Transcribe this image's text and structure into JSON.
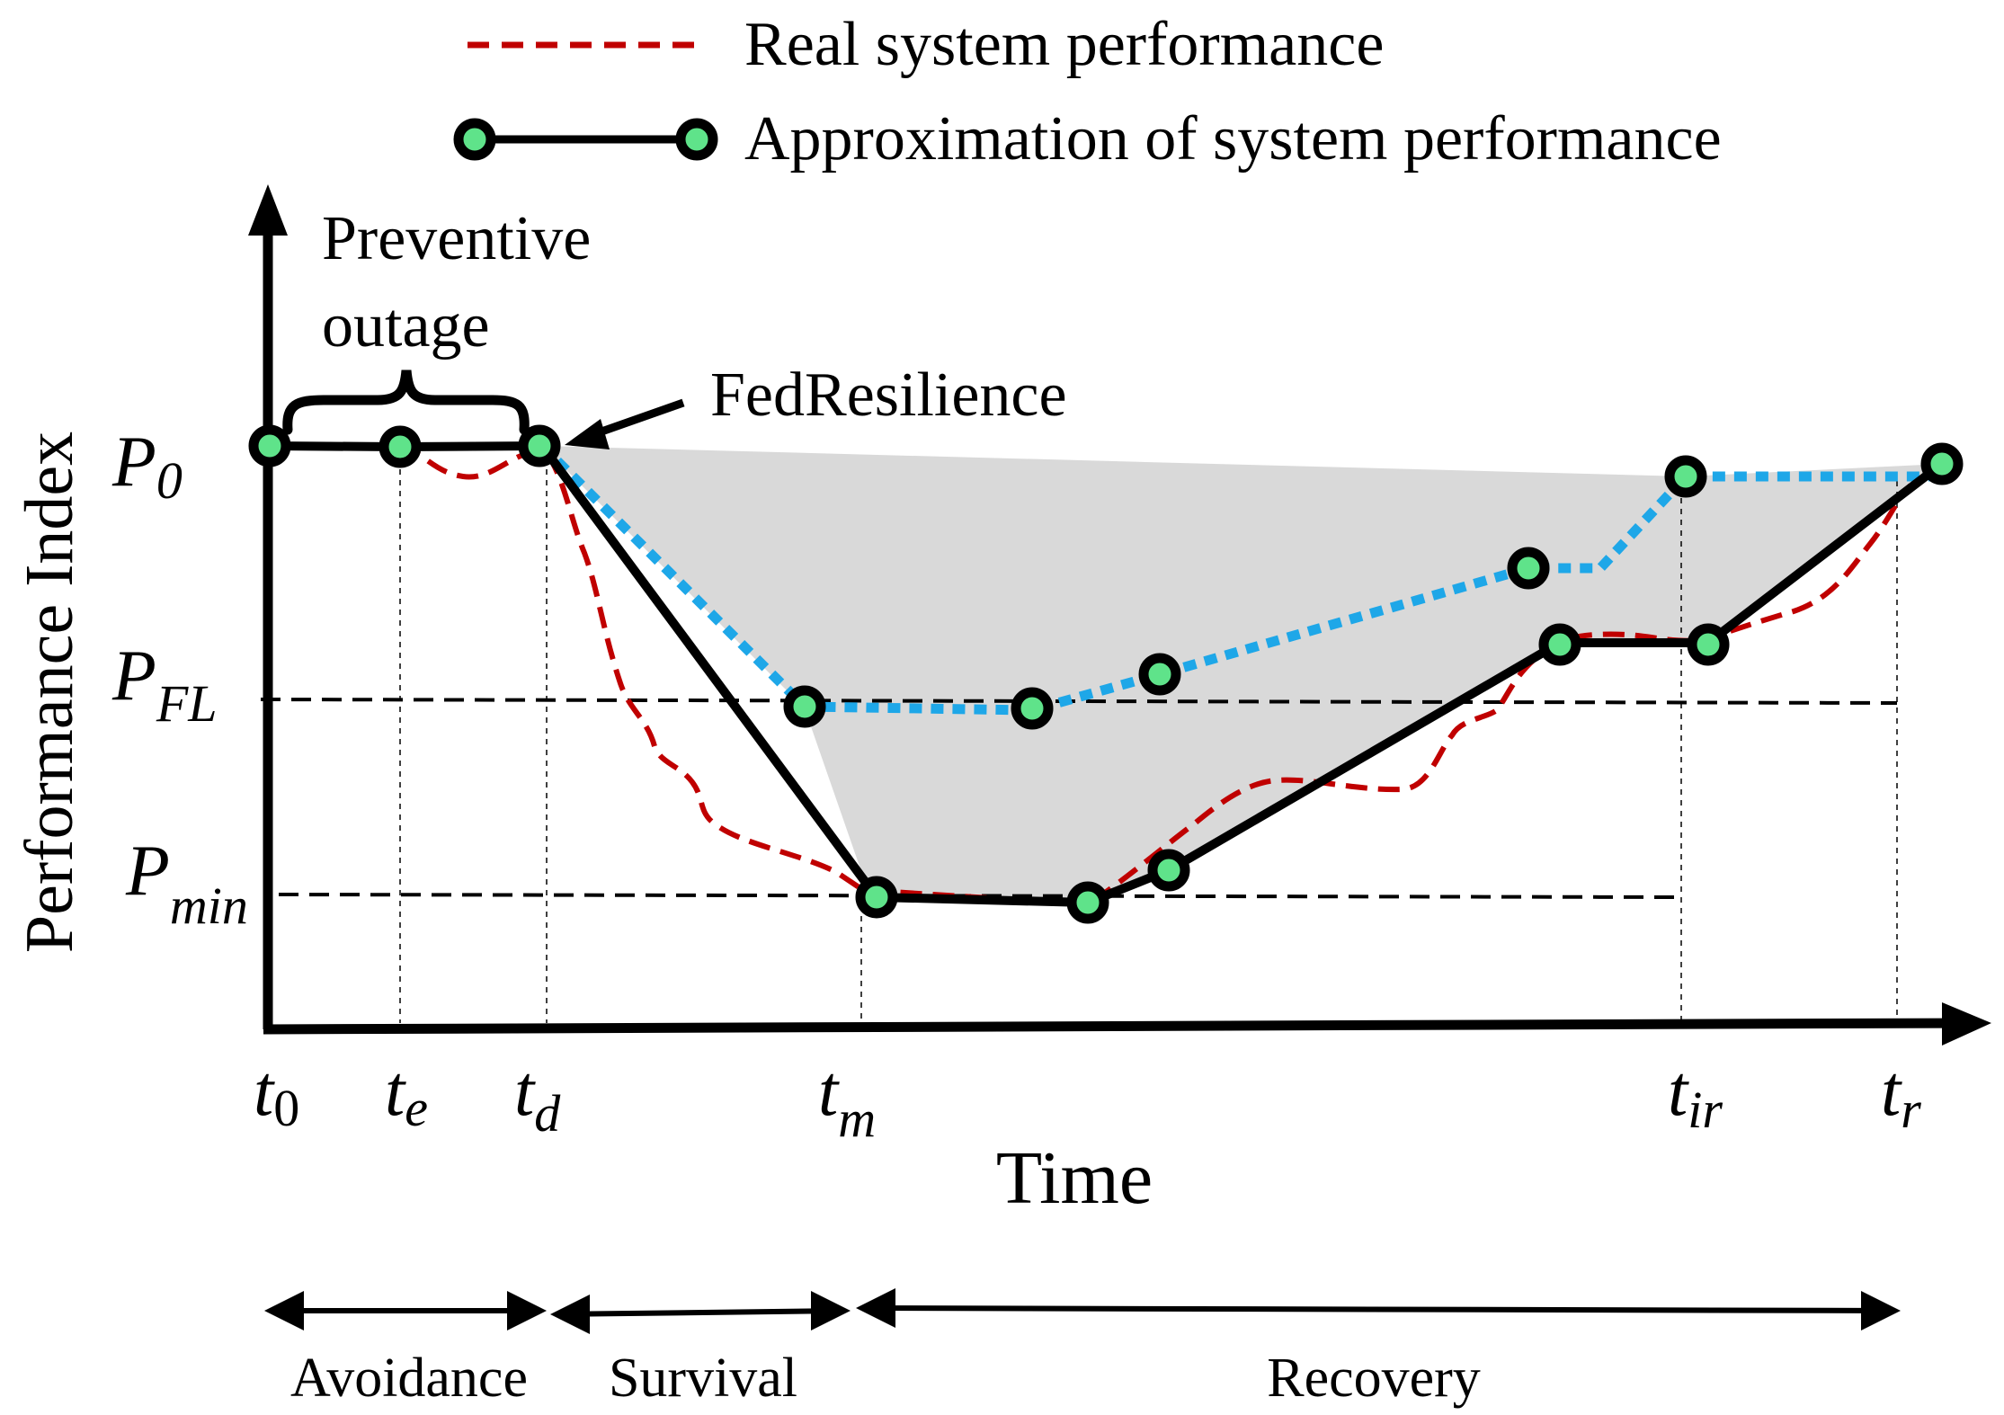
{
  "legend": {
    "real_label": "Real system performance",
    "approx_label": "Approximation of system performance"
  },
  "axes": {
    "y_label": "Performance Index",
    "x_label": "Time"
  },
  "y_levels": [
    {
      "id": "p0",
      "base": "P",
      "sub": "0"
    },
    {
      "id": "pfl",
      "base": "P",
      "sub": "FL"
    },
    {
      "id": "pmin",
      "base": "P",
      "sub": "min"
    }
  ],
  "x_ticks": [
    {
      "id": "t0",
      "base": "t",
      "sub": "0"
    },
    {
      "id": "te",
      "base": "t",
      "sub": "e"
    },
    {
      "id": "td",
      "base": "t",
      "sub": "d"
    },
    {
      "id": "tm",
      "base": "t",
      "sub": "m"
    },
    {
      "id": "tir",
      "base": "t",
      "sub": "ir"
    },
    {
      "id": "tr",
      "base": "t",
      "sub": "r"
    }
  ],
  "annotations": {
    "preventive_line1": "Preventive",
    "preventive_line2": "outage",
    "fedresilience": "FedResilience"
  },
  "phases": {
    "avoidance": "Avoidance",
    "survival": "Survival",
    "recovery": "Recovery"
  },
  "colors": {
    "real": "#c00000",
    "approx": "#000000",
    "fedresilience": "#1ea7e8",
    "marker_fill": "#5fe38a",
    "shade": "#d9d9d9"
  }
}
